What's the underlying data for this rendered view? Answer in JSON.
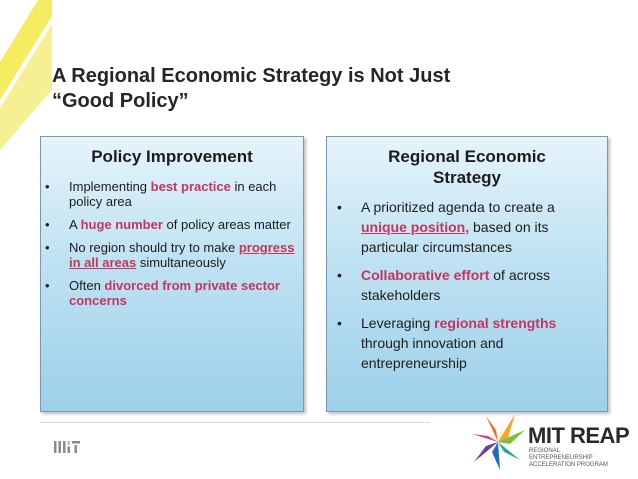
{
  "slide": {
    "title_line1": "A Regional Economic Strategy is Not Just",
    "title_line2": "“Good Policy”"
  },
  "left_box": {
    "heading": "Policy Improvement",
    "bullet": "•",
    "items": [
      {
        "pre": "Implementing ",
        "hl": "best practice",
        "post": " in each policy area"
      },
      {
        "pre": "A ",
        "hl": "huge number",
        "post": " of policy areas matter"
      },
      {
        "pre": "No region should try to make ",
        "hl": "progress in all areas",
        "post": " simultaneously"
      },
      {
        "pre": "Often ",
        "hl": "divorced from private sector concerns",
        "post": ""
      }
    ]
  },
  "right_box": {
    "heading_line1": "Regional Economic",
    "heading_line2": "Strategy",
    "bullet": "•",
    "items": [
      {
        "pre": "A prioritized agenda to create a ",
        "hl": "unique position,",
        "post": " based on its particular circumstances"
      },
      {
        "pre": "",
        "hl": "Collaborative effort",
        "post": " of across stakeholders"
      },
      {
        "pre": "Leveraging ",
        "hl": "regional strengths",
        "post": " through innovation and entrepreneurship"
      }
    ]
  },
  "footer": {
    "reap_title": "MIT REAP",
    "reap_sub_line1": "REGIONAL ENTREPRENEURSHIP",
    "reap_sub_line2": "ACCELERATION PROGRAM"
  },
  "colors": {
    "accent_yellow": "#f5ec61",
    "highlight": "#c2375e",
    "box_border": "#7b98ad"
  }
}
